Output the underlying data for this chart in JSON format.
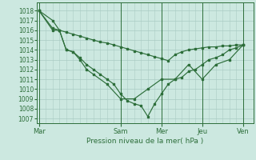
{
  "background_color": "#cce8e0",
  "grid_color": "#aaccc4",
  "line_color": "#2d6e3a",
  "marker_color": "#2d6e3a",
  "xlabel": "Pression niveau de la mer( hPa )",
  "ylim": [
    1006.5,
    1018.8
  ],
  "yticks": [
    1007,
    1008,
    1009,
    1010,
    1011,
    1012,
    1013,
    1014,
    1015,
    1016,
    1017,
    1018
  ],
  "xtick_labels": [
    "Mar",
    "Sam",
    "Mer",
    "Jeu",
    "Ven"
  ],
  "xtick_positions": [
    0,
    12,
    18,
    24,
    30
  ],
  "xlim": [
    -0.3,
    31.5
  ],
  "series1_x": [
    0,
    2,
    3,
    4,
    5,
    6,
    7,
    8,
    9,
    10,
    11,
    12,
    13,
    14,
    15,
    16,
    17,
    18,
    19,
    20,
    21,
    22,
    23,
    24,
    25,
    26,
    27,
    28,
    29,
    30
  ],
  "series1_y": [
    1018,
    1017,
    1016,
    1014,
    1013.8,
    1013.2,
    1012.5,
    1012,
    1011.5,
    1011,
    1010.5,
    1009.5,
    1008.8,
    1008.5,
    1008.3,
    1007.2,
    1008.5,
    1009.5,
    1010.5,
    1011,
    1011.2,
    1011.8,
    1012,
    1012.5,
    1013,
    1013.2,
    1013.5,
    1014,
    1014.2,
    1014.5
  ],
  "series2_x": [
    0,
    2,
    3,
    4,
    5,
    6,
    7,
    8,
    9,
    10,
    11,
    12,
    13,
    14,
    15,
    16,
    17,
    18,
    19,
    20,
    21,
    22,
    23,
    24,
    25,
    26,
    27,
    28,
    29,
    30
  ],
  "series2_y": [
    1018,
    1016.2,
    1016,
    1015.8,
    1015.6,
    1015.4,
    1015.2,
    1015.0,
    1014.8,
    1014.7,
    1014.5,
    1014.3,
    1014.1,
    1013.9,
    1013.7,
    1013.5,
    1013.3,
    1013.1,
    1012.9,
    1013.5,
    1013.8,
    1014.0,
    1014.1,
    1014.2,
    1014.3,
    1014.3,
    1014.4,
    1014.4,
    1014.5,
    1014.5
  ],
  "series3_x": [
    0,
    2,
    3,
    4,
    5,
    6,
    7,
    8,
    10,
    12,
    14,
    16,
    18,
    20,
    22,
    24,
    26,
    28,
    30
  ],
  "series3_y": [
    1018,
    1016,
    1016,
    1014,
    1013.8,
    1013,
    1012,
    1011.5,
    1010.5,
    1009,
    1009,
    1010,
    1011,
    1011,
    1012.5,
    1011,
    1012.5,
    1013,
    1014.5
  ],
  "ytick_fontsize": 5.5,
  "xtick_fontsize": 6.0,
  "xlabel_fontsize": 6.5
}
